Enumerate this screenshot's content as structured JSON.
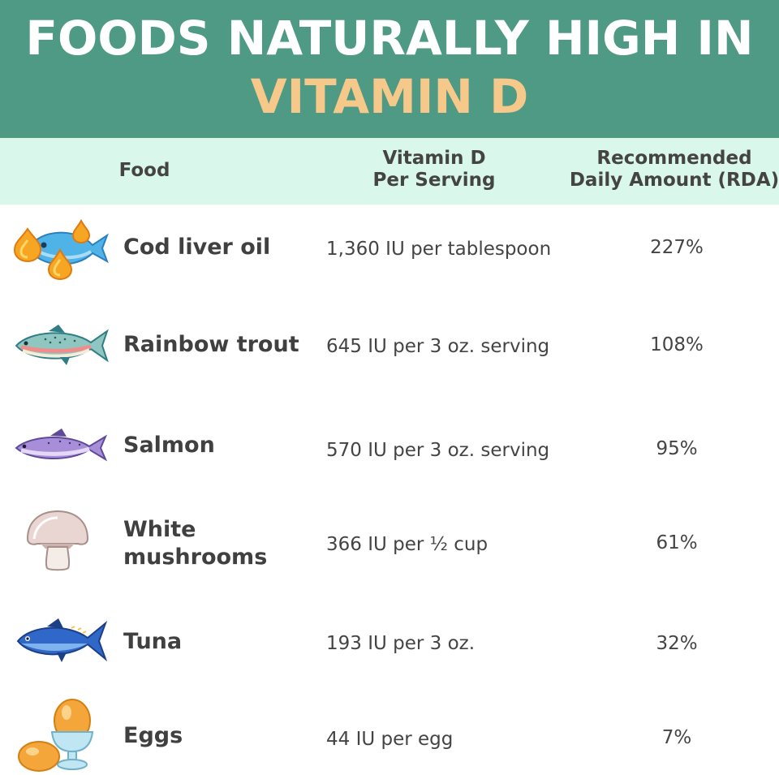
{
  "title": {
    "line1": "FOODS NATURALLY HIGH IN",
    "line2": "VITAMIN D"
  },
  "colors": {
    "banner": "#4f9a84",
    "title_line1": "#ffffff",
    "title_line2": "#f6c98a",
    "header_band": "#d9f7ea",
    "text": "#404040"
  },
  "table": {
    "headers": {
      "food": "Food",
      "vitamin_d": "Vitamin D\nPer Serving",
      "rda": "Recommended\nDaily Amount (RDA)"
    },
    "rows": [
      {
        "icon": "fish-oil-drops-icon",
        "food": "Cod liver oil",
        "vitamin_d": "1,360 IU per tablespoon",
        "rda": "227%"
      },
      {
        "icon": "rainbow-trout-icon",
        "food": "Rainbow trout",
        "vitamin_d": "645 IU per 3 oz. serving",
        "rda": "108%"
      },
      {
        "icon": "salmon-icon",
        "food": "Salmon",
        "vitamin_d": "570 IU per 3 oz. serving",
        "rda": "95%"
      },
      {
        "icon": "mushroom-icon",
        "food": "White\nmushrooms",
        "vitamin_d": "366 IU per ½ cup",
        "rda": "61%"
      },
      {
        "icon": "tuna-icon",
        "food": "Tuna",
        "vitamin_d": "193 IU per 3 oz.",
        "rda": "32%"
      },
      {
        "icon": "egg-in-cup-icon",
        "food": "Eggs",
        "vitamin_d": "44 IU per egg",
        "rda": "7%"
      }
    ]
  }
}
